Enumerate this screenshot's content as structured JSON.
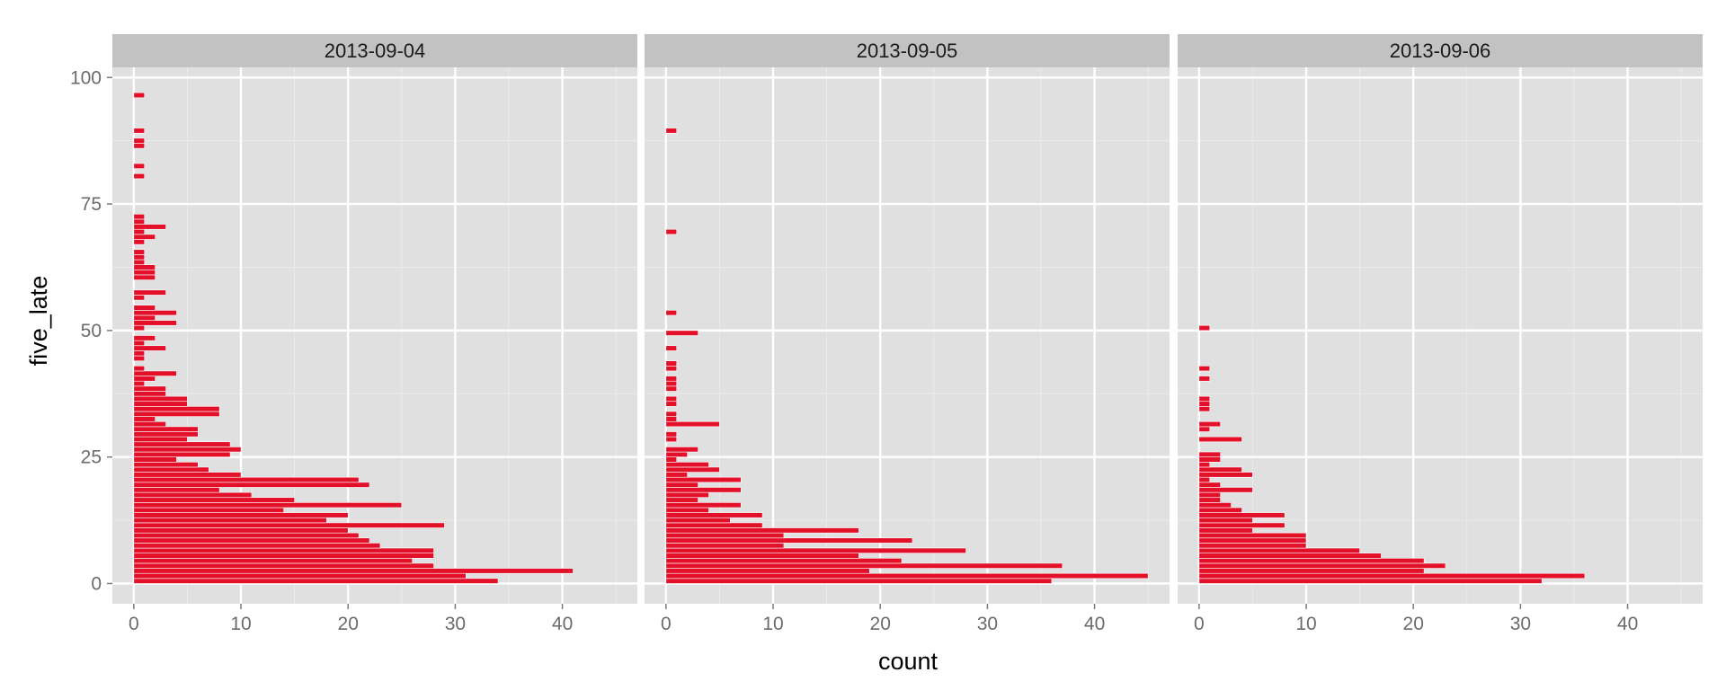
{
  "chart_data": {
    "type": "bar",
    "orientation": "horizontal",
    "xlabel": "count",
    "ylabel": "five_late",
    "xlim": [
      -2,
      47
    ],
    "ylim": [
      -4,
      102
    ],
    "x_ticks": [
      0,
      10,
      20,
      30,
      40
    ],
    "y_ticks": [
      0,
      25,
      50,
      75,
      100
    ],
    "grid": true,
    "bar_color": "#e3102a",
    "panel_background": "#e0e0e0",
    "strip_background": "#c2c2c2",
    "facets": [
      {
        "label": "2013-09-04",
        "bars": [
          [
            0,
            34
          ],
          [
            1,
            31
          ],
          [
            2,
            41
          ],
          [
            3,
            28
          ],
          [
            4,
            26
          ],
          [
            5,
            28
          ],
          [
            6,
            28
          ],
          [
            7,
            23
          ],
          [
            8,
            22
          ],
          [
            9,
            21
          ],
          [
            10,
            20
          ],
          [
            11,
            29
          ],
          [
            12,
            18
          ],
          [
            13,
            20
          ],
          [
            14,
            14
          ],
          [
            15,
            25
          ],
          [
            16,
            15
          ],
          [
            17,
            11
          ],
          [
            18,
            8
          ],
          [
            19,
            22
          ],
          [
            20,
            21
          ],
          [
            21,
            10
          ],
          [
            22,
            7
          ],
          [
            23,
            6
          ],
          [
            24,
            4
          ],
          [
            25,
            9
          ],
          [
            26,
            10
          ],
          [
            27,
            9
          ],
          [
            28,
            5
          ],
          [
            29,
            6
          ],
          [
            30,
            6
          ],
          [
            31,
            3
          ],
          [
            32,
            2
          ],
          [
            33,
            8
          ],
          [
            34,
            8
          ],
          [
            35,
            5
          ],
          [
            36,
            5
          ],
          [
            37,
            3
          ],
          [
            38,
            3
          ],
          [
            39,
            1
          ],
          [
            40,
            2
          ],
          [
            41,
            4
          ],
          [
            42,
            1
          ],
          [
            44,
            1
          ],
          [
            45,
            1
          ],
          [
            46,
            3
          ],
          [
            47,
            1
          ],
          [
            48,
            2
          ],
          [
            50,
            1
          ],
          [
            51,
            4
          ],
          [
            52,
            2
          ],
          [
            53,
            4
          ],
          [
            54,
            2
          ],
          [
            56,
            1
          ],
          [
            57,
            3
          ],
          [
            60,
            2
          ],
          [
            61,
            2
          ],
          [
            62,
            2
          ],
          [
            63,
            1
          ],
          [
            64,
            1
          ],
          [
            65,
            1
          ],
          [
            67,
            1
          ],
          [
            68,
            2
          ],
          [
            69,
            1
          ],
          [
            70,
            3
          ],
          [
            71,
            1
          ],
          [
            72,
            1
          ],
          [
            80,
            1
          ],
          [
            82,
            1
          ],
          [
            86,
            1
          ],
          [
            87,
            1
          ],
          [
            89,
            1
          ],
          [
            96,
            1
          ]
        ]
      },
      {
        "label": "2013-09-05",
        "bars": [
          [
            0,
            36
          ],
          [
            1,
            45
          ],
          [
            2,
            19
          ],
          [
            3,
            37
          ],
          [
            4,
            22
          ],
          [
            5,
            18
          ],
          [
            6,
            28
          ],
          [
            7,
            11
          ],
          [
            8,
            23
          ],
          [
            9,
            11
          ],
          [
            10,
            18
          ],
          [
            11,
            9
          ],
          [
            12,
            6
          ],
          [
            13,
            9
          ],
          [
            14,
            4
          ],
          [
            15,
            7
          ],
          [
            16,
            3
          ],
          [
            17,
            4
          ],
          [
            18,
            7
          ],
          [
            19,
            3
          ],
          [
            20,
            7
          ],
          [
            21,
            2
          ],
          [
            22,
            5
          ],
          [
            23,
            4
          ],
          [
            24,
            1
          ],
          [
            25,
            2
          ],
          [
            26,
            3
          ],
          [
            28,
            1
          ],
          [
            29,
            1
          ],
          [
            31,
            5
          ],
          [
            32,
            1
          ],
          [
            33,
            1
          ],
          [
            35,
            1
          ],
          [
            36,
            1
          ],
          [
            38,
            1
          ],
          [
            39,
            1
          ],
          [
            40,
            1
          ],
          [
            42,
            1
          ],
          [
            43,
            1
          ],
          [
            46,
            1
          ],
          [
            49,
            3
          ],
          [
            53,
            1
          ],
          [
            69,
            1
          ],
          [
            89,
            1
          ]
        ]
      },
      {
        "label": "2013-09-06",
        "bars": [
          [
            0,
            32
          ],
          [
            1,
            36
          ],
          [
            2,
            21
          ],
          [
            3,
            23
          ],
          [
            4,
            21
          ],
          [
            5,
            17
          ],
          [
            6,
            15
          ],
          [
            7,
            10
          ],
          [
            8,
            10
          ],
          [
            9,
            10
          ],
          [
            10,
            5
          ],
          [
            11,
            8
          ],
          [
            12,
            5
          ],
          [
            13,
            8
          ],
          [
            14,
            4
          ],
          [
            15,
            3
          ],
          [
            16,
            2
          ],
          [
            17,
            2
          ],
          [
            18,
            5
          ],
          [
            19,
            2
          ],
          [
            20,
            1
          ],
          [
            21,
            5
          ],
          [
            22,
            4
          ],
          [
            23,
            1
          ],
          [
            24,
            2
          ],
          [
            25,
            2
          ],
          [
            28,
            4
          ],
          [
            30,
            1
          ],
          [
            31,
            2
          ],
          [
            34,
            1
          ],
          [
            35,
            1
          ],
          [
            36,
            1
          ],
          [
            40,
            1
          ],
          [
            42,
            1
          ],
          [
            50,
            1
          ]
        ]
      }
    ]
  }
}
